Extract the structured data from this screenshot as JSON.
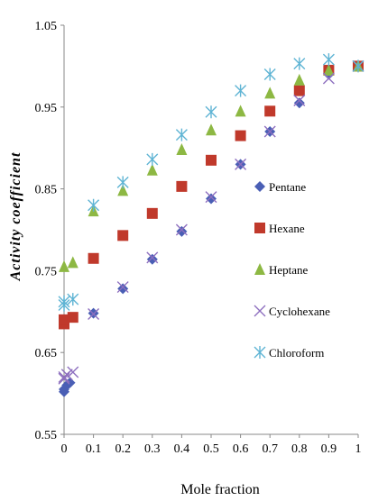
{
  "chart_data": {
    "type": "scatter",
    "xlabel": "Mole fraction",
    "ylabel": "Activity coefficient",
    "xlim": [
      0,
      1
    ],
    "ylim": [
      0.55,
      1.05
    ],
    "xticks": [
      "0",
      "0.1",
      "0.2",
      "0.3",
      "0.4",
      "0.5",
      "0.6",
      "0.7",
      "0.8",
      "0.9",
      "1"
    ],
    "yticks": [
      "0.55",
      "0.65",
      "0.75",
      "0.85",
      "0.95",
      "1.05"
    ],
    "grid": false,
    "legend_position": "right",
    "series": [
      {
        "name": "Pentane",
        "marker": "diamond",
        "color": "#4a5fb5",
        "points": [
          [
            0,
            0.602
          ],
          [
            0,
            0.605
          ],
          [
            0.01,
            0.61
          ],
          [
            0.02,
            0.613
          ],
          [
            0.1,
            0.698
          ],
          [
            0.2,
            0.728
          ],
          [
            0.3,
            0.764
          ],
          [
            0.4,
            0.798
          ],
          [
            0.5,
            0.838
          ],
          [
            0.6,
            0.88
          ],
          [
            0.7,
            0.92
          ],
          [
            0.8,
            0.955
          ],
          [
            0.9,
            0.99
          ],
          [
            1,
            1.0
          ]
        ]
      },
      {
        "name": "Hexane",
        "marker": "square",
        "color": "#c0392b",
        "points": [
          [
            0,
            0.685
          ],
          [
            0,
            0.69
          ],
          [
            0.03,
            0.693
          ],
          [
            0.1,
            0.765
          ],
          [
            0.2,
            0.793
          ],
          [
            0.3,
            0.82
          ],
          [
            0.4,
            0.853
          ],
          [
            0.5,
            0.885
          ],
          [
            0.6,
            0.915
          ],
          [
            0.7,
            0.945
          ],
          [
            0.8,
            0.97
          ],
          [
            0.9,
            0.995
          ],
          [
            1,
            1.0
          ]
        ]
      },
      {
        "name": "Heptane",
        "marker": "triangle",
        "color": "#8db843",
        "points": [
          [
            0,
            0.755
          ],
          [
            0.03,
            0.76
          ],
          [
            0.1,
            0.823
          ],
          [
            0.2,
            0.848
          ],
          [
            0.3,
            0.873
          ],
          [
            0.4,
            0.898
          ],
          [
            0.5,
            0.922
          ],
          [
            0.6,
            0.945
          ],
          [
            0.7,
            0.967
          ],
          [
            0.8,
            0.983
          ],
          [
            0.9,
            0.995
          ],
          [
            1,
            1.0
          ]
        ]
      },
      {
        "name": "Cyclohexane",
        "marker": "x",
        "color": "#8e6fbf",
        "points": [
          [
            0,
            0.62
          ],
          [
            0,
            0.618
          ],
          [
            0.01,
            0.623
          ],
          [
            0.03,
            0.626
          ],
          [
            0.1,
            0.697
          ],
          [
            0.2,
            0.73
          ],
          [
            0.3,
            0.766
          ],
          [
            0.4,
            0.8
          ],
          [
            0.5,
            0.84
          ],
          [
            0.6,
            0.88
          ],
          [
            0.7,
            0.92
          ],
          [
            0.8,
            0.958
          ],
          [
            0.9,
            0.985
          ],
          [
            1,
            1.0
          ]
        ]
      },
      {
        "name": "Chloroform",
        "marker": "star",
        "color": "#5fb4d4",
        "points": [
          [
            0,
            0.708
          ],
          [
            0,
            0.712
          ],
          [
            0.03,
            0.715
          ],
          [
            0.1,
            0.83
          ],
          [
            0.2,
            0.858
          ],
          [
            0.3,
            0.886
          ],
          [
            0.4,
            0.916
          ],
          [
            0.5,
            0.944
          ],
          [
            0.6,
            0.97
          ],
          [
            0.7,
            0.99
          ],
          [
            0.8,
            1.003
          ],
          [
            0.9,
            1.008
          ],
          [
            1,
            1.0
          ]
        ]
      }
    ]
  }
}
